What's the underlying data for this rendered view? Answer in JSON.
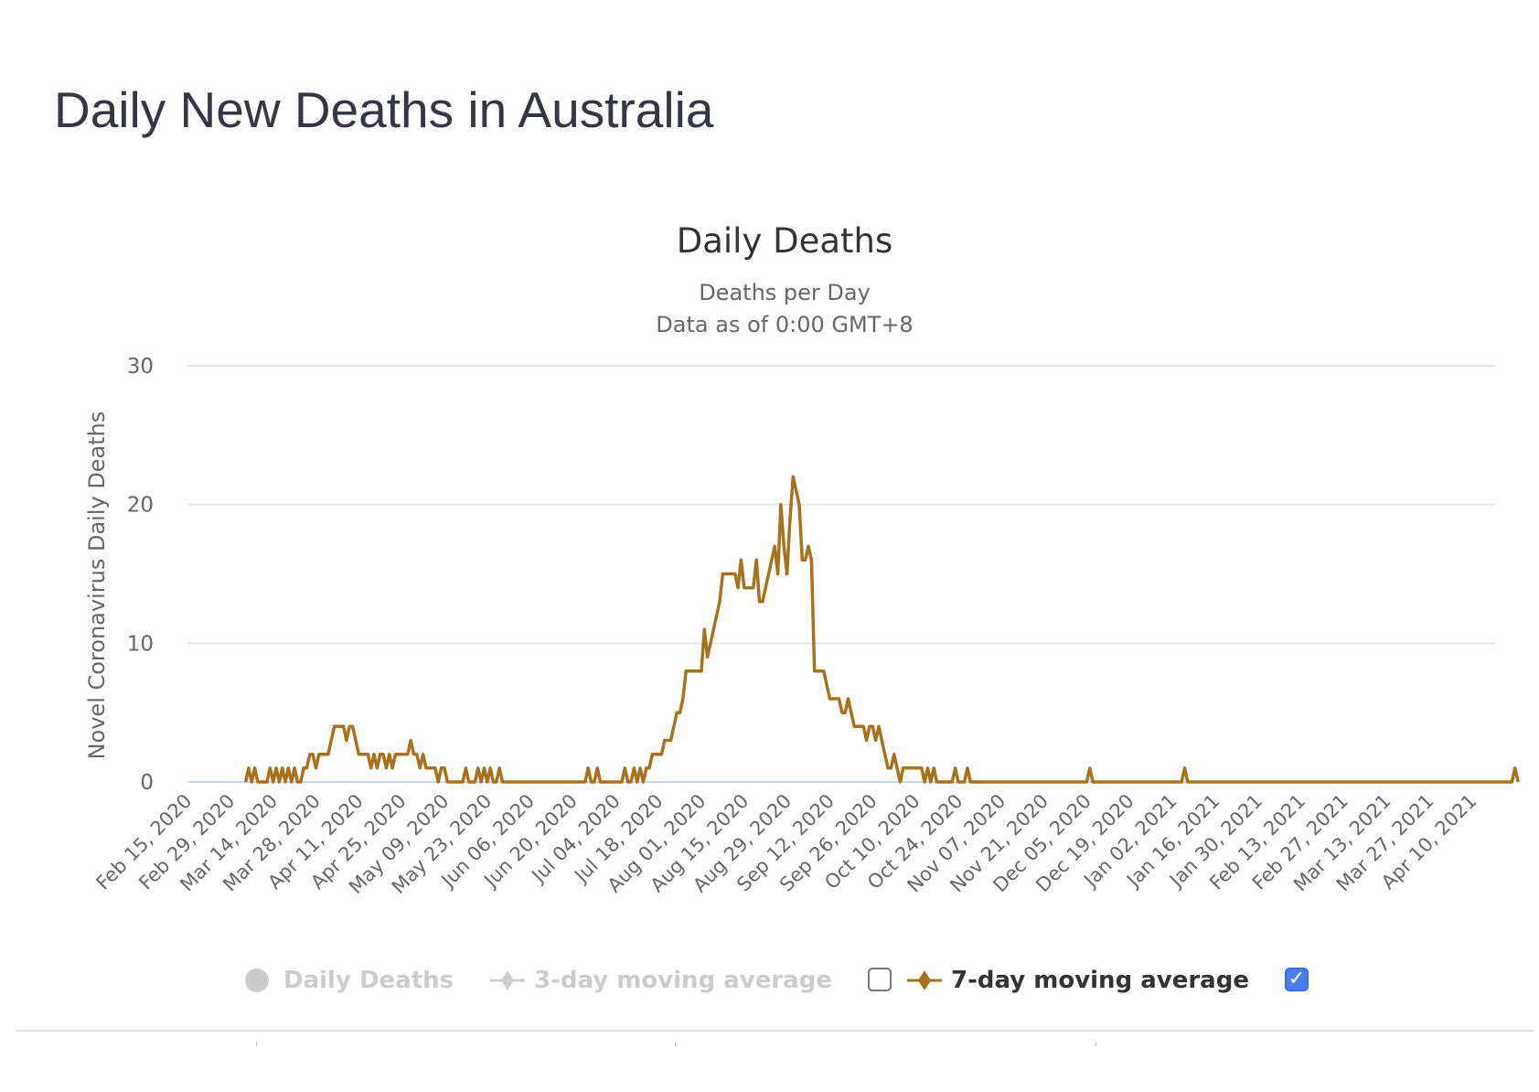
{
  "page": {
    "title": "Daily New Deaths in Australia"
  },
  "chart_data": {
    "type": "line",
    "title": "Daily Deaths",
    "subtitle_line1": "Deaths per Day",
    "subtitle_line2": "Data as of 0:00 GMT+8",
    "xlabel": "",
    "ylabel": "Novel Coronavirus Daily Deaths",
    "ylim": [
      0,
      30
    ],
    "yticks": [
      0,
      10,
      20,
      30
    ],
    "grid": true,
    "legend_position": "bottom",
    "x_start": "Feb 15, 2020",
    "x_step_days": 1,
    "xtick_labels": [
      "Feb 15, 2020",
      "Feb 29, 2020",
      "Mar 14, 2020",
      "Mar 28, 2020",
      "Apr 11, 2020",
      "Apr 25, 2020",
      "May 09, 2020",
      "May 23, 2020",
      "Jun 06, 2020",
      "Jun 20, 2020",
      "Jul 04, 2020",
      "Jul 18, 2020",
      "Aug 01, 2020",
      "Aug 15, 2020",
      "Aug 29, 2020",
      "Sep 12, 2020",
      "Sep 26, 2020",
      "Oct 10, 2020",
      "Oct 24, 2020",
      "Nov 07, 2020",
      "Nov 21, 2020",
      "Dec 05, 2020",
      "Dec 19, 2020",
      "Jan 02, 2021",
      "Jan 16, 2021",
      "Jan 30, 2021",
      "Feb 13, 2021",
      "Feb 27, 2021",
      "Mar 13, 2021",
      "Mar 27, 2021",
      "Apr 10, 2021"
    ],
    "xtick_step_days": 14,
    "x_total_days": 429,
    "series": [
      {
        "name": "7-day moving average",
        "color": "#a67220",
        "visible": true,
        "start_day": 19,
        "values": [
          0,
          1,
          0,
          1,
          0,
          0,
          0,
          0,
          1,
          0,
          1,
          0,
          1,
          0,
          1,
          0,
          1,
          0,
          0,
          1,
          1,
          2,
          2,
          1,
          2,
          2,
          2,
          2,
          3,
          4,
          4,
          4,
          4,
          3,
          4,
          4,
          3,
          2,
          2,
          2,
          2,
          1,
          2,
          1,
          2,
          2,
          1,
          2,
          1,
          2,
          2,
          2,
          2,
          2,
          3,
          2,
          2,
          1,
          2,
          1,
          1,
          1,
          1,
          0,
          1,
          1,
          0,
          0,
          0,
          0,
          0,
          0,
          1,
          0,
          0,
          0,
          1,
          0,
          1,
          0,
          1,
          0,
          0,
          1,
          0,
          0,
          0,
          0,
          0,
          0,
          0,
          0,
          0,
          0,
          0,
          0,
          0,
          0,
          0,
          0,
          0,
          0,
          0,
          0,
          0,
          0,
          0,
          0,
          0,
          0,
          0,
          0,
          1,
          0,
          0,
          1,
          0,
          0,
          0,
          0,
          0,
          0,
          0,
          0,
          1,
          0,
          0,
          1,
          0,
          1,
          0,
          1,
          1,
          2,
          2,
          2,
          2,
          3,
          3,
          3,
          4,
          5,
          5,
          6,
          8,
          8,
          8,
          8,
          8,
          8,
          11,
          9,
          10,
          11,
          12,
          13,
          15,
          15,
          15,
          15,
          15,
          14,
          16,
          14,
          14,
          14,
          14,
          16,
          13,
          13,
          14,
          15,
          16,
          17,
          15,
          20,
          17,
          15,
          19,
          22,
          21,
          20,
          16,
          16,
          17,
          16,
          8,
          8,
          8,
          8,
          7,
          6,
          6,
          6,
          6,
          5,
          5,
          6,
          5,
          4,
          4,
          4,
          4,
          3,
          4,
          4,
          3,
          4,
          3,
          2,
          1,
          1,
          2,
          1,
          0,
          1,
          1,
          1,
          1,
          1,
          1,
          1,
          0,
          1,
          0,
          1,
          0,
          0,
          0,
          0,
          0,
          0,
          1,
          0,
          0,
          0,
          1,
          0,
          0,
          0,
          0,
          0,
          0,
          0,
          0,
          0,
          0,
          0,
          0,
          0,
          0,
          0,
          0,
          0,
          0,
          0,
          0,
          0,
          0,
          0,
          0,
          0,
          0,
          0,
          0,
          0,
          0,
          0,
          0,
          0,
          0,
          0,
          0,
          0,
          0,
          0,
          1,
          0,
          0,
          0,
          0,
          0,
          0,
          0,
          0,
          0,
          0,
          0,
          0,
          0,
          0,
          0,
          0,
          0,
          0,
          0,
          0,
          0,
          0,
          0,
          0,
          0,
          0,
          0,
          0,
          0,
          0,
          1,
          0,
          0,
          0,
          0,
          0,
          0,
          0,
          0,
          0,
          0,
          0,
          0,
          0,
          0,
          0,
          0,
          0,
          0,
          0,
          0,
          0,
          0,
          0,
          0,
          0,
          0,
          0,
          0,
          0,
          0,
          0,
          0,
          0,
          0,
          0,
          0,
          0,
          0,
          0,
          0,
          0,
          0,
          0,
          0,
          0,
          0,
          0,
          0,
          0,
          0,
          0,
          0,
          0,
          0,
          0,
          0,
          0,
          0,
          0,
          0,
          0,
          0,
          0,
          0,
          0,
          0,
          0,
          0,
          0,
          0,
          0,
          0,
          0,
          0,
          0,
          0,
          0,
          0,
          0,
          0,
          0,
          0,
          0,
          0,
          0,
          0,
          0,
          0,
          0,
          0,
          0,
          0,
          0,
          0,
          0,
          0,
          0,
          0,
          0,
          0,
          0,
          0,
          0,
          0,
          0,
          0,
          0,
          1,
          0
        ]
      }
    ]
  },
  "legend": {
    "items": [
      {
        "label": "Daily Deaths",
        "icon": "circle-marker-icon",
        "active": false
      },
      {
        "label": "3-day moving average",
        "icon": "line-diamond-marker-icon",
        "active": false,
        "checkbox_checked": false
      },
      {
        "label": "7-day moving average",
        "icon": "line-diamond-marker-icon",
        "active": true,
        "checkbox_checked": true
      }
    ],
    "checkmark": "✓"
  },
  "colors": {
    "series_active": "#a67220",
    "legend_inactive": "#cccccc",
    "checkbox_checked": "#4a7ef0",
    "gridline": "#e6e6e6",
    "zero_line": "#ccd6eb"
  }
}
